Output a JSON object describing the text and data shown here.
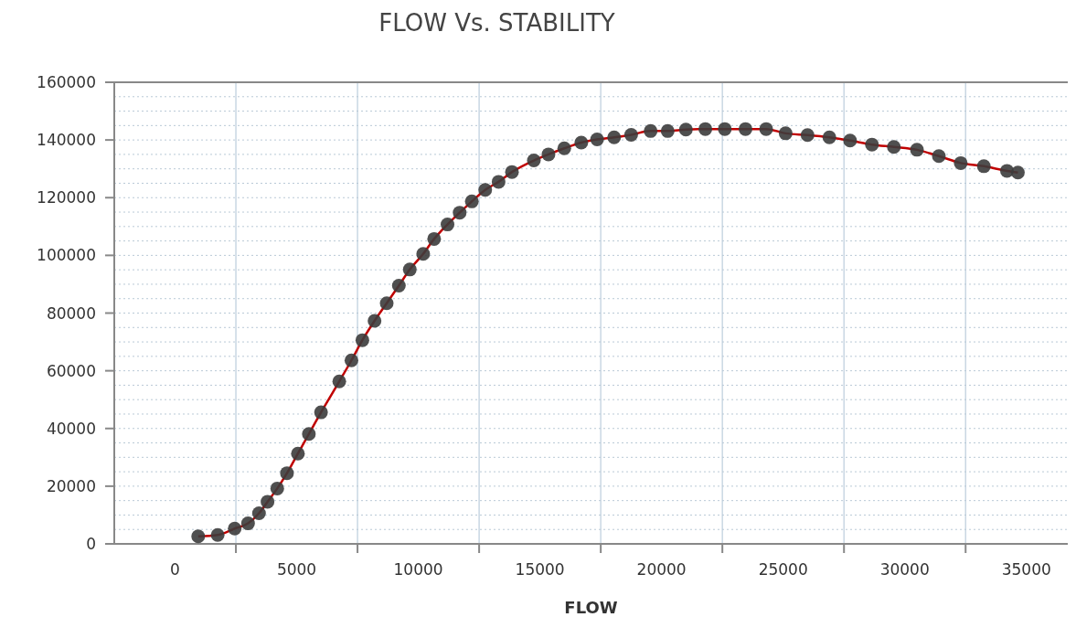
{
  "chart_data": {
    "type": "line",
    "title": "FLOW Vs. STABILITY",
    "xlabel": "FLOW",
    "xlim": [
      -2500,
      36700
    ],
    "xticks": [
      0,
      {
        "value": 2500,
        "label": null
      },
      5000,
      {
        "value": 7500,
        "label": null
      },
      10000,
      {
        "value": 12500,
        "label": null
      },
      15000,
      {
        "value": 17500,
        "label": null
      },
      20000,
      {
        "value": 22500,
        "label": null
      },
      25000,
      {
        "value": 27500,
        "label": null
      },
      30000,
      {
        "value": 32500,
        "label": null
      },
      35000
    ],
    "ylim": [
      0,
      160000
    ],
    "yticks": [
      0,
      {
        "value": 5000,
        "label": null
      },
      {
        "value": 10000,
        "label": null
      },
      {
        "value": 15000,
        "label": null
      },
      20000,
      {
        "value": 25000,
        "label": null
      },
      {
        "value": 30000,
        "label": null
      },
      {
        "value": 35000,
        "label": null
      },
      40000,
      {
        "value": 45000,
        "label": null
      },
      {
        "value": 50000,
        "label": null
      },
      {
        "value": 55000,
        "label": null
      },
      60000,
      {
        "value": 65000,
        "label": null
      },
      {
        "value": 70000,
        "label": null
      },
      {
        "value": 75000,
        "label": null
      },
      80000,
      {
        "value": 85000,
        "label": null
      },
      {
        "value": 90000,
        "label": null
      },
      {
        "value": 95000,
        "label": null
      },
      100000,
      {
        "value": 105000,
        "label": null
      },
      {
        "value": 110000,
        "label": null
      },
      {
        "value": 115000,
        "label": null
      },
      120000,
      {
        "value": 125000,
        "label": null
      },
      {
        "value": 130000,
        "label": null
      },
      {
        "value": 135000,
        "label": null
      },
      140000,
      {
        "value": 145000,
        "label": null
      },
      {
        "value": 150000,
        "label": null
      },
      {
        "value": 155000,
        "label": null
      },
      160000
    ],
    "grid": true,
    "marker": "circle",
    "line_style": "solid",
    "x": [
      950,
      1750,
      2450,
      3000,
      3450,
      3800,
      4200,
      4600,
      5050,
      5500,
      6000,
      6750,
      7250,
      7700,
      8200,
      8700,
      9200,
      9650,
      10200,
      10650,
      11200,
      11700,
      12200,
      12750,
      13300,
      13850,
      14750,
      15350,
      16000,
      16700,
      17350,
      18050,
      18750,
      19550,
      20250,
      21000,
      21800,
      22600,
      23450,
      24300,
      25100,
      26000,
      26900,
      27750,
      28650,
      29550,
      30500,
      31400,
      32300,
      33250,
      34200,
      34650
    ],
    "series": [
      {
        "color": "#c00000",
        "values": [
          2600,
          3100,
          5300,
          7100,
          10600,
          14600,
          19200,
          24500,
          31300,
          38100,
          45600,
          56300,
          63600,
          70600,
          77300,
          83400,
          89500,
          95100,
          100500,
          105700,
          110700,
          114800,
          118700,
          122700,
          125500,
          128900,
          132900,
          135000,
          137100,
          139100,
          140200,
          140900,
          141800,
          143100,
          143100,
          143600,
          143800,
          143800,
          143800,
          143800,
          142300,
          141700,
          140900,
          139800,
          138400,
          137600,
          136600,
          134400,
          132000,
          130900,
          129300,
          128700
        ]
      }
    ]
  }
}
